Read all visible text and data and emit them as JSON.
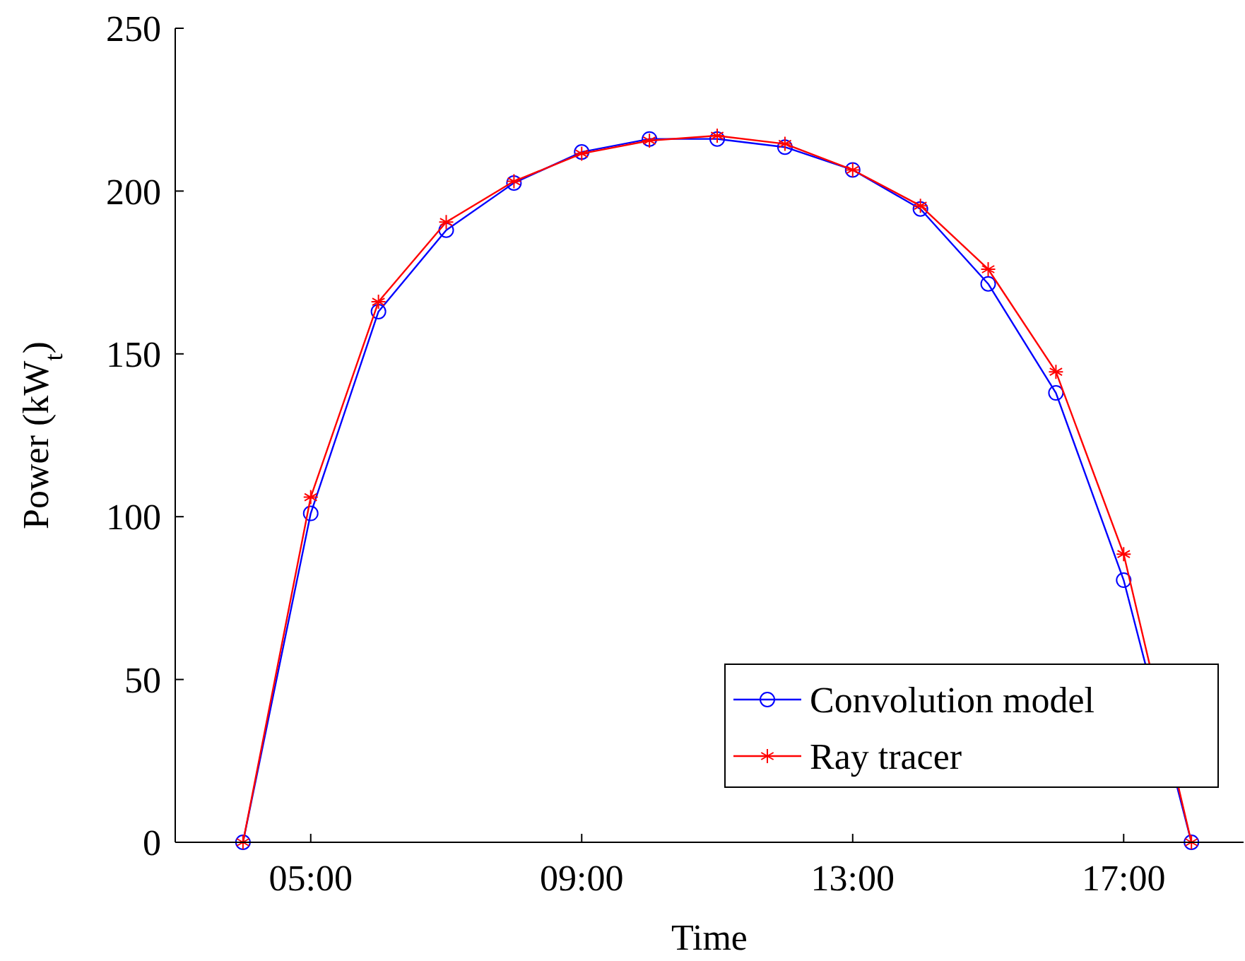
{
  "chart_data": {
    "type": "line",
    "xlabel": "Time",
    "ylabel": "Power (kW$_{t}$)",
    "x": [
      4,
      5,
      6,
      7,
      8,
      9,
      10,
      11,
      12,
      13,
      14,
      15,
      16,
      17,
      18
    ],
    "series": [
      {
        "name": "Convolution model",
        "color": "#0000ff",
        "marker": "circle",
        "values": [
          0,
          101,
          163,
          188,
          202.5,
          212,
          216,
          216,
          213.5,
          206.5,
          194.5,
          171.5,
          138,
          80.5,
          0
        ]
      },
      {
        "name": "Ray tracer",
        "color": "#ff0000",
        "marker": "cross",
        "values": [
          0,
          106,
          166,
          190.5,
          203,
          211.5,
          215.5,
          217,
          214.5,
          206.5,
          195.5,
          176,
          144.5,
          88.5,
          0
        ]
      }
    ],
    "xlim": [
      3,
      18.77
    ],
    "ylim": [
      0,
      250
    ],
    "xticks": [
      {
        "value": 5,
        "label": "05:00"
      },
      {
        "value": 9,
        "label": "09:00"
      },
      {
        "value": 13,
        "label": "13:00"
      },
      {
        "value": 17,
        "label": "17:00"
      }
    ],
    "yticks": [
      0,
      50,
      100,
      150,
      200,
      250
    ],
    "legend": "bottom right",
    "line_style": "solid"
  }
}
